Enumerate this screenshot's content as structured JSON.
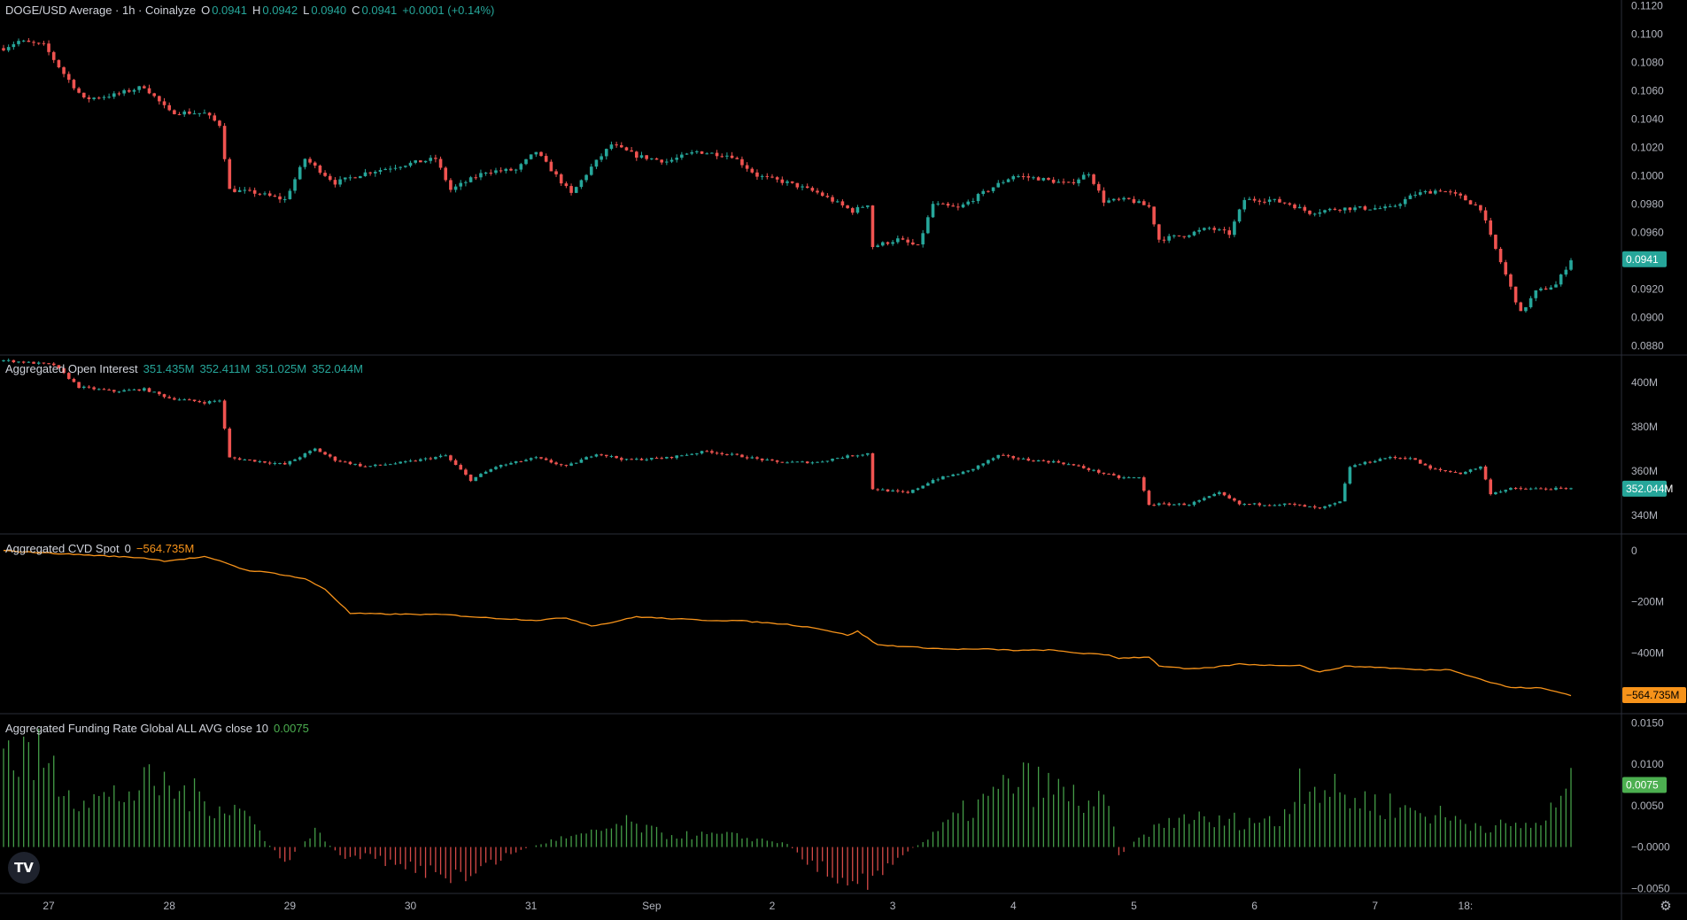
{
  "header": {
    "symbol_title": "DOGE/USD Average · 1h · Coinalyze",
    "o_label": "O",
    "o_value": "0.0941",
    "h_label": "H",
    "h_value": "0.0942",
    "l_label": "L",
    "l_value": "0.0940",
    "c_label": "C",
    "c_value": "0.0941",
    "change": "+0.0001 (+0.14%)"
  },
  "chart_data": [
    {
      "type": "candlestick",
      "title": "DOGE/USD Average · 1h · Coinalyze",
      "ylim": [
        0.0874,
        0.1124
      ],
      "y_ticks": [
        "0.1120",
        "0.1100",
        "0.1080",
        "0.1060",
        "0.1040",
        "0.1020",
        "0.1000",
        "0.0980",
        "0.0960",
        "0.0940",
        "0.0920",
        "0.0900",
        "0.0880"
      ],
      "last_value_label": "0.0941",
      "colors": {
        "up": "#26a69a",
        "down": "#ef5350"
      },
      "anchors": [
        [
          0,
          0.109
        ],
        [
          3,
          0.1095
        ],
        [
          8,
          0.1092
        ],
        [
          12,
          0.1072
        ],
        [
          16,
          0.1054
        ],
        [
          22,
          0.1057
        ],
        [
          28,
          0.1063
        ],
        [
          33,
          0.1045
        ],
        [
          40,
          0.1044
        ],
        [
          43,
          0.1036
        ],
        [
          45,
          0.099
        ],
        [
          50,
          0.0988
        ],
        [
          56,
          0.0983
        ],
        [
          60,
          0.1012
        ],
        [
          66,
          0.0995
        ],
        [
          72,
          0.1002
        ],
        [
          80,
          0.1008
        ],
        [
          86,
          0.1012
        ],
        [
          89,
          0.099
        ],
        [
          96,
          0.1003
        ],
        [
          102,
          0.1004
        ],
        [
          106,
          0.1017
        ],
        [
          110,
          0.1
        ],
        [
          113,
          0.0987
        ],
        [
          117,
          0.1006
        ],
        [
          121,
          0.1022
        ],
        [
          126,
          0.1014
        ],
        [
          132,
          0.101
        ],
        [
          138,
          0.1017
        ],
        [
          145,
          0.1014
        ],
        [
          150,
          0.1
        ],
        [
          156,
          0.0995
        ],
        [
          162,
          0.0988
        ],
        [
          169,
          0.0975
        ],
        [
          172,
          0.098
        ],
        [
          173,
          0.095
        ],
        [
          178,
          0.0955
        ],
        [
          182,
          0.095
        ],
        [
          185,
          0.098
        ],
        [
          190,
          0.0977
        ],
        [
          196,
          0.099
        ],
        [
          201,
          0.1
        ],
        [
          206,
          0.0998
        ],
        [
          212,
          0.0994
        ],
        [
          216,
          0.1002
        ],
        [
          219,
          0.0982
        ],
        [
          224,
          0.0983
        ],
        [
          228,
          0.0978
        ],
        [
          230,
          0.0955
        ],
        [
          235,
          0.0958
        ],
        [
          240,
          0.0963
        ],
        [
          244,
          0.0959
        ],
        [
          247,
          0.0983
        ],
        [
          252,
          0.0983
        ],
        [
          256,
          0.098
        ],
        [
          260,
          0.0974
        ],
        [
          266,
          0.0977
        ],
        [
          272,
          0.0977
        ],
        [
          276,
          0.0977
        ],
        [
          281,
          0.0987
        ],
        [
          286,
          0.099
        ],
        [
          290,
          0.0985
        ],
        [
          294,
          0.0977
        ],
        [
          296,
          0.0957
        ],
        [
          299,
          0.093
        ],
        [
          302,
          0.0903
        ],
        [
          305,
          0.0918
        ],
        [
          309,
          0.0923
        ],
        [
          312,
          0.0941
        ]
      ]
    },
    {
      "type": "candlestick",
      "title": "Aggregated Open Interest",
      "ylim": [
        332,
        412
      ],
      "y_ticks": [
        "400M",
        "380M",
        "360M",
        "340M"
      ],
      "last_value_label": "352.044M",
      "anchors": [
        [
          0,
          410
        ],
        [
          10,
          408
        ],
        [
          15,
          398
        ],
        [
          22,
          396
        ],
        [
          28,
          397
        ],
        [
          33,
          393
        ],
        [
          40,
          391
        ],
        [
          43,
          392
        ],
        [
          45,
          366
        ],
        [
          56,
          363
        ],
        [
          62,
          370
        ],
        [
          66,
          365
        ],
        [
          72,
          362
        ],
        [
          80,
          364
        ],
        [
          88,
          367
        ],
        [
          93,
          356
        ],
        [
          98,
          362
        ],
        [
          106,
          366
        ],
        [
          112,
          362
        ],
        [
          118,
          368
        ],
        [
          124,
          365
        ],
        [
          132,
          366
        ],
        [
          140,
          369
        ],
        [
          146,
          367
        ],
        [
          154,
          364
        ],
        [
          162,
          364
        ],
        [
          166,
          366
        ],
        [
          172,
          368
        ],
        [
          173,
          352
        ],
        [
          180,
          350
        ],
        [
          185,
          356
        ],
        [
          192,
          360
        ],
        [
          198,
          367
        ],
        [
          204,
          365
        ],
        [
          210,
          364
        ],
        [
          214,
          362
        ],
        [
          222,
          357
        ],
        [
          226,
          357
        ],
        [
          228,
          345
        ],
        [
          236,
          345
        ],
        [
          242,
          350
        ],
        [
          246,
          345
        ],
        [
          256,
          345
        ],
        [
          262,
          343
        ],
        [
          266,
          346
        ],
        [
          268,
          362
        ],
        [
          275,
          366
        ],
        [
          280,
          366
        ],
        [
          284,
          361
        ],
        [
          290,
          359
        ],
        [
          294,
          362
        ],
        [
          296,
          350
        ],
        [
          300,
          352
        ],
        [
          303,
          352
        ],
        [
          312,
          352
        ]
      ]
    },
    {
      "type": "line",
      "title": "Aggregated CVD Spot 0",
      "ylim": [
        -620,
        0
      ],
      "y_ticks": [
        "0",
        "−200M",
        "−400M"
      ],
      "last_value_label": "−564.735M",
      "series": [
        {
          "name": "Aggregated CVD Spot 0",
          "color": "#f7931a",
          "x": [
            0,
            10,
            28,
            32,
            40,
            44,
            48,
            54,
            60,
            64,
            69,
            78,
            88,
            96,
            106,
            112,
            117,
            120,
            126,
            132,
            140,
            146,
            150,
            156,
            162,
            168,
            170,
            174,
            182,
            188,
            196,
            202,
            208,
            214,
            220,
            222,
            228,
            230,
            236,
            240,
            246,
            252,
            258,
            262,
            267,
            273,
            282,
            288,
            292,
            296,
            300,
            306,
            312
          ],
          "values": [
            0,
            -10,
            -28,
            -40,
            -24,
            -45,
            -75,
            -88,
            -110,
            -150,
            -245,
            -248,
            -250,
            -262,
            -272,
            -262,
            -293,
            -285,
            -258,
            -265,
            -272,
            -273,
            -279,
            -288,
            -303,
            -330,
            -315,
            -368,
            -378,
            -385,
            -385,
            -390,
            -388,
            -400,
            -408,
            -420,
            -415,
            -450,
            -463,
            -458,
            -443,
            -448,
            -448,
            -475,
            -452,
            -455,
            -466,
            -465,
            -490,
            -515,
            -535,
            -537,
            -564.735
          ]
        }
      ]
    },
    {
      "type": "bar",
      "title": "Aggregated Funding Rate Global ALL AVG close 10",
      "ylim": [
        -0.0055,
        0.016
      ],
      "y_ticks": [
        "0.0150",
        "0.0100",
        "0.0050",
        "−0.0000",
        "−0.0050"
      ],
      "last_value_label": "0.0075",
      "colors": {
        "positive": "#4caf50",
        "negative": "#ef5350"
      },
      "anchors": [
        [
          0,
          0.012
        ],
        [
          8,
          0.011
        ],
        [
          14,
          0.007
        ],
        [
          20,
          0.006
        ],
        [
          30,
          0.008
        ],
        [
          40,
          0.006
        ],
        [
          48,
          0.0045
        ],
        [
          52,
          0.001
        ],
        [
          56,
          -0.002
        ],
        [
          62,
          0.002
        ],
        [
          68,
          -0.0015
        ],
        [
          72,
          -0.001
        ],
        [
          78,
          -0.0025
        ],
        [
          86,
          -0.003
        ],
        [
          92,
          -0.004
        ],
        [
          100,
          -0.001
        ],
        [
          110,
          0.001
        ],
        [
          116,
          0.0015
        ],
        [
          124,
          0.003
        ],
        [
          132,
          0.0015
        ],
        [
          144,
          0.0015
        ],
        [
          150,
          0.001
        ],
        [
          156,
          0.0005
        ],
        [
          160,
          -0.002
        ],
        [
          166,
          -0.0035
        ],
        [
          172,
          -0.004
        ],
        [
          176,
          -0.003
        ],
        [
          180,
          -0.0005
        ],
        [
          184,
          0.001
        ],
        [
          190,
          0.004
        ],
        [
          196,
          0.006
        ],
        [
          202,
          0.0085
        ],
        [
          208,
          0.0075
        ],
        [
          214,
          0.006
        ],
        [
          220,
          0.005
        ],
        [
          222,
          -0.001
        ],
        [
          228,
          0.002
        ],
        [
          236,
          0.004
        ],
        [
          240,
          0.003
        ],
        [
          248,
          0.0035
        ],
        [
          254,
          0.003
        ],
        [
          258,
          0.009
        ],
        [
          264,
          0.007
        ],
        [
          270,
          0.006
        ],
        [
          278,
          0.005
        ],
        [
          286,
          0.004
        ],
        [
          292,
          0.003
        ],
        [
          300,
          0.0025
        ],
        [
          306,
          0.003
        ],
        [
          312,
          0.0075
        ]
      ]
    }
  ],
  "indicators": {
    "open_interest": {
      "title": "Aggregated Open Interest",
      "o": "351.435M",
      "h": "352.411M",
      "l": "351.025M",
      "c": "352.044M"
    },
    "cvd": {
      "title": "Aggregated CVD Spot",
      "param": "0",
      "value": "−564.735M"
    },
    "funding": {
      "title": "Aggregated Funding Rate Global ALL AVG close 10",
      "value": "0.0075"
    }
  },
  "time_axis": {
    "labels": [
      {
        "text": "27",
        "i": 9
      },
      {
        "text": "28",
        "i": 33
      },
      {
        "text": "29",
        "i": 57
      },
      {
        "text": "30",
        "i": 81
      },
      {
        "text": "31",
        "i": 105
      },
      {
        "text": "Sep",
        "i": 129
      },
      {
        "text": "2",
        "i": 153
      },
      {
        "text": "3",
        "i": 177
      },
      {
        "text": "4",
        "i": 201
      },
      {
        "text": "5",
        "i": 225
      },
      {
        "text": "6",
        "i": 249
      },
      {
        "text": "7",
        "i": 273
      },
      {
        "text": "18:",
        "i": 291
      }
    ]
  },
  "icons": {
    "logo": "tradingview-logo-icon",
    "settings": "gear-icon"
  },
  "logo_text": "TV"
}
